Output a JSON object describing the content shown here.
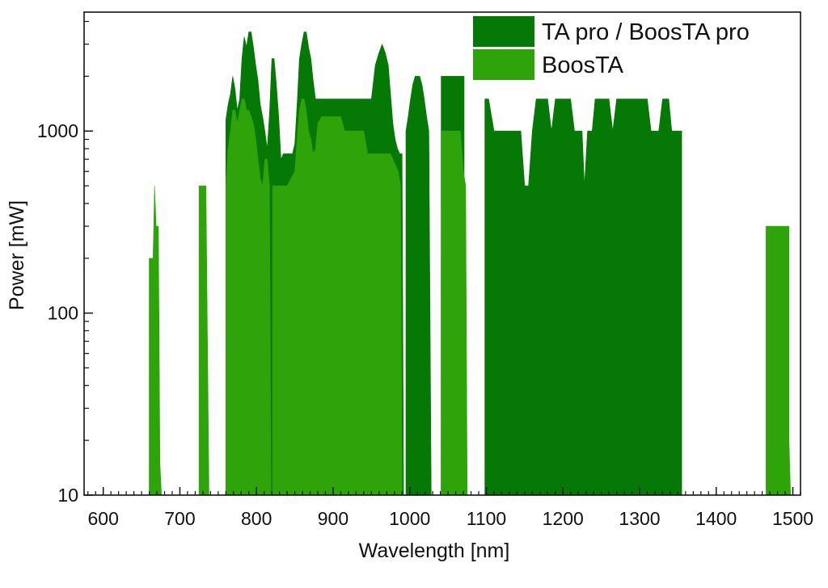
{
  "chart_data": {
    "type": "area",
    "title": "",
    "xlabel": "Wavelength [nm]",
    "ylabel": "Power [mW]",
    "xlim": [
      575,
      1510
    ],
    "ylim": [
      10,
      4500
    ],
    "yscale": "log",
    "x_ticks": [
      600,
      700,
      800,
      900,
      1000,
      1100,
      1200,
      1300,
      1400,
      1500
    ],
    "x_tick_labels": [
      "600",
      "700",
      "800",
      "900",
      "1000",
      "1100",
      "1200",
      "1300",
      "1400",
      "1500"
    ],
    "y_ticks": [
      10,
      100,
      1000
    ],
    "y_tick_labels": [
      "10",
      "100",
      "1000"
    ],
    "grid": false,
    "legend_position": "top-right",
    "series": [
      {
        "name": "TA pro / BoosTA pro",
        "color": "#067806",
        "segments": [
          [
            [
              760,
              10
            ],
            [
              760,
              1150
            ],
            [
              763,
              1400
            ],
            [
              766,
              1600
            ],
            [
              769,
              2000
            ],
            [
              772,
              1700
            ],
            [
              775,
              1300
            ],
            [
              778,
              1500
            ],
            [
              781,
              2500
            ],
            [
              784,
              3300
            ],
            [
              787,
              2900
            ],
            [
              790,
              3500
            ],
            [
              793,
              3500
            ],
            [
              796,
              2900
            ],
            [
              799,
              2300
            ],
            [
              802,
              1900
            ],
            [
              805,
              1400
            ],
            [
              808,
              1200
            ],
            [
              811,
              1000
            ],
            [
              814,
              800
            ],
            [
              817,
              1250
            ],
            [
              820,
              2500
            ],
            [
              823,
              2500
            ],
            [
              826,
              1800
            ],
            [
              829,
              1200
            ],
            [
              832,
              700
            ],
            [
              835,
              750
            ],
            [
              838,
              750
            ],
            [
              841,
              750
            ],
            [
              844,
              750
            ],
            [
              847,
              750
            ],
            [
              850,
              850
            ],
            [
              853,
              1400
            ],
            [
              856,
              2500
            ],
            [
              859,
              3000
            ],
            [
              862,
              3500
            ],
            [
              865,
              3500
            ],
            [
              868,
              2900
            ],
            [
              871,
              2500
            ],
            [
              874,
              1900
            ],
            [
              877,
              1500
            ],
            [
              880,
              1500
            ],
            [
              900,
              1500
            ],
            [
              920,
              1500
            ],
            [
              940,
              1500
            ],
            [
              950,
              1500
            ],
            [
              955,
              2300
            ],
            [
              960,
              2700
            ],
            [
              964,
              3000
            ],
            [
              968,
              2700
            ],
            [
              972,
              2300
            ],
            [
              975,
              1600
            ],
            [
              978,
              1100
            ],
            [
              981,
              900
            ],
            [
              984,
              800
            ],
            [
              987,
              750
            ],
            [
              990,
              750
            ],
            [
              992,
              10
            ]
          ],
          [
            [
              995,
              10
            ],
            [
              995,
              1000
            ],
            [
              998,
              1200
            ],
            [
              1001,
              1500
            ],
            [
              1004,
              1800
            ],
            [
              1007,
              2000
            ],
            [
              1010,
              2000
            ],
            [
              1013,
              2000
            ],
            [
              1016,
              1800
            ],
            [
              1019,
              1500
            ],
            [
              1022,
              1200
            ],
            [
              1025,
              1000
            ],
            [
              1028,
              10
            ]
          ],
          [
            [
              1041,
              10
            ],
            [
              1041,
              2000
            ],
            [
              1056,
              2000
            ],
            [
              1071,
              2000
            ],
            [
              1071,
              10
            ]
          ],
          [
            [
              1098,
              10
            ],
            [
              1098,
              1500
            ],
            [
              1103,
              1500
            ],
            [
              1110,
              1000
            ],
            [
              1130,
              1000
            ],
            [
              1145,
              1000
            ],
            [
              1150,
              500
            ],
            [
              1155,
              500
            ],
            [
              1160,
              1000
            ],
            [
              1165,
              1500
            ],
            [
              1175,
              1500
            ],
            [
              1180,
              1500
            ],
            [
              1185,
              1000
            ],
            [
              1190,
              1500
            ],
            [
              1200,
              1500
            ],
            [
              1210,
              1500
            ],
            [
              1215,
              1000
            ],
            [
              1225,
              1000
            ],
            [
              1228,
              500
            ],
            [
              1232,
              1000
            ],
            [
              1238,
              1000
            ],
            [
              1242,
              1500
            ],
            [
              1250,
              1500
            ],
            [
              1260,
              1500
            ],
            [
              1265,
              1000
            ],
            [
              1270,
              1500
            ],
            [
              1280,
              1500
            ],
            [
              1300,
              1500
            ],
            [
              1310,
              1500
            ],
            [
              1315,
              1000
            ],
            [
              1325,
              1000
            ],
            [
              1330,
              1500
            ],
            [
              1338,
              1500
            ],
            [
              1342,
              1000
            ],
            [
              1355,
              1000
            ],
            [
              1355,
              10
            ]
          ]
        ]
      },
      {
        "name": "BoosTA",
        "color": "#2ea30a",
        "segments": [
          [
            [
              660,
              10
            ],
            [
              660,
              200
            ],
            [
              665,
              200
            ],
            [
              667,
              500
            ],
            [
              669,
              300
            ],
            [
              672,
              300
            ],
            [
              674,
              15
            ],
            [
              676,
              10
            ]
          ],
          [
            [
              725,
              10
            ],
            [
              725,
              500
            ],
            [
              734,
              500
            ],
            [
              736,
              70
            ],
            [
              738,
              10
            ]
          ],
          [
            [
              760,
              10
            ],
            [
              760,
              500
            ],
            [
              763,
              800
            ],
            [
              766,
              1000
            ],
            [
              769,
              1300
            ],
            [
              772,
              1300
            ],
            [
              775,
              1100
            ],
            [
              778,
              1300
            ],
            [
              781,
              1500
            ],
            [
              784,
              1500
            ],
            [
              787,
              1300
            ],
            [
              790,
              1300
            ],
            [
              793,
              1200
            ],
            [
              796,
              1100
            ],
            [
              799,
              900
            ],
            [
              802,
              700
            ],
            [
              805,
              550
            ],
            [
              808,
              500
            ],
            [
              811,
              700
            ],
            [
              814,
              700
            ],
            [
              817,
              500
            ],
            [
              819,
              10
            ],
            [
              821,
              10
            ],
            [
              821,
              500
            ],
            [
              830,
              500
            ],
            [
              840,
              500
            ],
            [
              850,
              600
            ],
            [
              853,
              900
            ],
            [
              856,
              1300
            ],
            [
              859,
              1500
            ],
            [
              862,
              1500
            ],
            [
              865,
              1300
            ],
            [
              868,
              1000
            ],
            [
              871,
              900
            ],
            [
              874,
              750
            ],
            [
              877,
              800
            ],
            [
              880,
              1100
            ],
            [
              885,
              1200
            ],
            [
              900,
              1200
            ],
            [
              910,
              1200
            ],
            [
              915,
              1000
            ],
            [
              940,
              1000
            ],
            [
              945,
              750
            ],
            [
              960,
              750
            ],
            [
              970,
              750
            ],
            [
              975,
              750
            ],
            [
              985,
              600
            ],
            [
              988,
              500
            ],
            [
              990,
              10
            ]
          ],
          [
            [
              1041,
              10
            ],
            [
              1041,
              1000
            ],
            [
              1056,
              1000
            ],
            [
              1066,
              1000
            ],
            [
              1070,
              600
            ],
            [
              1073,
              500
            ],
            [
              1075,
              10
            ]
          ],
          [
            [
              1465,
              10
            ],
            [
              1465,
              300
            ],
            [
              1495,
              300
            ],
            [
              1495,
              20
            ],
            [
              1497,
              10
            ]
          ]
        ]
      }
    ]
  }
}
